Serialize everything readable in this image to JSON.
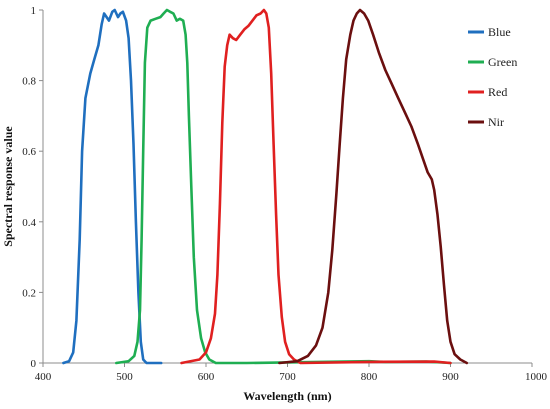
{
  "chart_data": {
    "type": "line",
    "title": "",
    "xlabel": "Wavelength (nm)",
    "ylabel": "Spectral response value",
    "xlim": [
      400,
      1000
    ],
    "ylim": [
      0,
      1
    ],
    "x_ticks": [
      400,
      500,
      600,
      700,
      800,
      900,
      1000
    ],
    "y_ticks": [
      0,
      0.2,
      0.4,
      0.6,
      0.8,
      1
    ],
    "x_tick_labels": [
      "400",
      "500",
      "600",
      "700",
      "800",
      "900",
      "1000"
    ],
    "y_tick_labels": [
      "0",
      "0.2",
      "0.4",
      "0.6",
      "0.8",
      "1"
    ],
    "grid": false,
    "legend_position": "top-right",
    "series": [
      {
        "name": "Blue",
        "color": "#1f6fbf",
        "points": [
          [
            425,
            0
          ],
          [
            432,
            0.005
          ],
          [
            437,
            0.03
          ],
          [
            441,
            0.12
          ],
          [
            445,
            0.35
          ],
          [
            448,
            0.6
          ],
          [
            452,
            0.75
          ],
          [
            458,
            0.82
          ],
          [
            463,
            0.86
          ],
          [
            468,
            0.9
          ],
          [
            472,
            0.96
          ],
          [
            475,
            0.99
          ],
          [
            478,
            0.98
          ],
          [
            481,
            0.97
          ],
          [
            485,
            0.995
          ],
          [
            488,
            1
          ],
          [
            492,
            0.98
          ],
          [
            495,
            0.99
          ],
          [
            498,
            0.995
          ],
          [
            502,
            0.97
          ],
          [
            505,
            0.92
          ],
          [
            508,
            0.8
          ],
          [
            511,
            0.62
          ],
          [
            514,
            0.4
          ],
          [
            517,
            0.2
          ],
          [
            520,
            0.06
          ],
          [
            523,
            0.01
          ],
          [
            527,
            0
          ],
          [
            545,
            0
          ]
        ]
      },
      {
        "name": "Green",
        "color": "#1fae52",
        "points": [
          [
            490,
            0
          ],
          [
            505,
            0.005
          ],
          [
            512,
            0.02
          ],
          [
            516,
            0.06
          ],
          [
            519,
            0.15
          ],
          [
            521,
            0.35
          ],
          [
            523,
            0.6
          ],
          [
            525,
            0.85
          ],
          [
            528,
            0.95
          ],
          [
            532,
            0.97
          ],
          [
            538,
            0.975
          ],
          [
            544,
            0.98
          ],
          [
            548,
            0.99
          ],
          [
            552,
            1
          ],
          [
            556,
            0.995
          ],
          [
            560,
            0.99
          ],
          [
            564,
            0.97
          ],
          [
            568,
            0.975
          ],
          [
            572,
            0.97
          ],
          [
            575,
            0.93
          ],
          [
            577,
            0.85
          ],
          [
            579,
            0.7
          ],
          [
            582,
            0.5
          ],
          [
            585,
            0.3
          ],
          [
            589,
            0.15
          ],
          [
            594,
            0.07
          ],
          [
            599,
            0.03
          ],
          [
            604,
            0.01
          ],
          [
            612,
            0
          ],
          [
            650,
            0
          ],
          [
            800,
            0.005
          ],
          [
            820,
            0.003
          ],
          [
            870,
            0.004
          ],
          [
            900,
            0
          ]
        ]
      },
      {
        "name": "Red",
        "color": "#e02020",
        "points": [
          [
            570,
            0
          ],
          [
            592,
            0.01
          ],
          [
            600,
            0.03
          ],
          [
            606,
            0.07
          ],
          [
            611,
            0.14
          ],
          [
            614,
            0.25
          ],
          [
            617,
            0.45
          ],
          [
            620,
            0.68
          ],
          [
            623,
            0.84
          ],
          [
            626,
            0.9
          ],
          [
            629,
            0.93
          ],
          [
            633,
            0.92
          ],
          [
            637,
            0.915
          ],
          [
            642,
            0.93
          ],
          [
            647,
            0.945
          ],
          [
            652,
            0.955
          ],
          [
            657,
            0.97
          ],
          [
            662,
            0.985
          ],
          [
            667,
            0.99
          ],
          [
            671,
            1
          ],
          [
            674,
            0.99
          ],
          [
            677,
            0.95
          ],
          [
            680,
            0.82
          ],
          [
            683,
            0.62
          ],
          [
            686,
            0.42
          ],
          [
            689,
            0.25
          ],
          [
            693,
            0.13
          ],
          [
            697,
            0.06
          ],
          [
            702,
            0.025
          ],
          [
            708,
            0.01
          ],
          [
            716,
            0
          ],
          [
            800,
            0.003
          ],
          [
            880,
            0.004
          ],
          [
            900,
            0
          ]
        ]
      },
      {
        "name": "Nir",
        "color": "#6b0f0f",
        "points": [
          [
            690,
            0
          ],
          [
            712,
            0.005
          ],
          [
            725,
            0.02
          ],
          [
            735,
            0.05
          ],
          [
            743,
            0.1
          ],
          [
            750,
            0.2
          ],
          [
            755,
            0.32
          ],
          [
            760,
            0.48
          ],
          [
            764,
            0.62
          ],
          [
            768,
            0.75
          ],
          [
            772,
            0.86
          ],
          [
            777,
            0.93
          ],
          [
            781,
            0.97
          ],
          [
            785,
            0.99
          ],
          [
            789,
            1
          ],
          [
            794,
            0.99
          ],
          [
            799,
            0.97
          ],
          [
            805,
            0.93
          ],
          [
            812,
            0.88
          ],
          [
            820,
            0.83
          ],
          [
            828,
            0.79
          ],
          [
            836,
            0.75
          ],
          [
            844,
            0.71
          ],
          [
            852,
            0.67
          ],
          [
            860,
            0.62
          ],
          [
            866,
            0.58
          ],
          [
            872,
            0.54
          ],
          [
            877,
            0.52
          ],
          [
            880,
            0.49
          ],
          [
            884,
            0.42
          ],
          [
            888,
            0.33
          ],
          [
            892,
            0.22
          ],
          [
            896,
            0.12
          ],
          [
            900,
            0.06
          ],
          [
            905,
            0.025
          ],
          [
            912,
            0.01
          ],
          [
            920,
            0
          ]
        ]
      }
    ]
  }
}
